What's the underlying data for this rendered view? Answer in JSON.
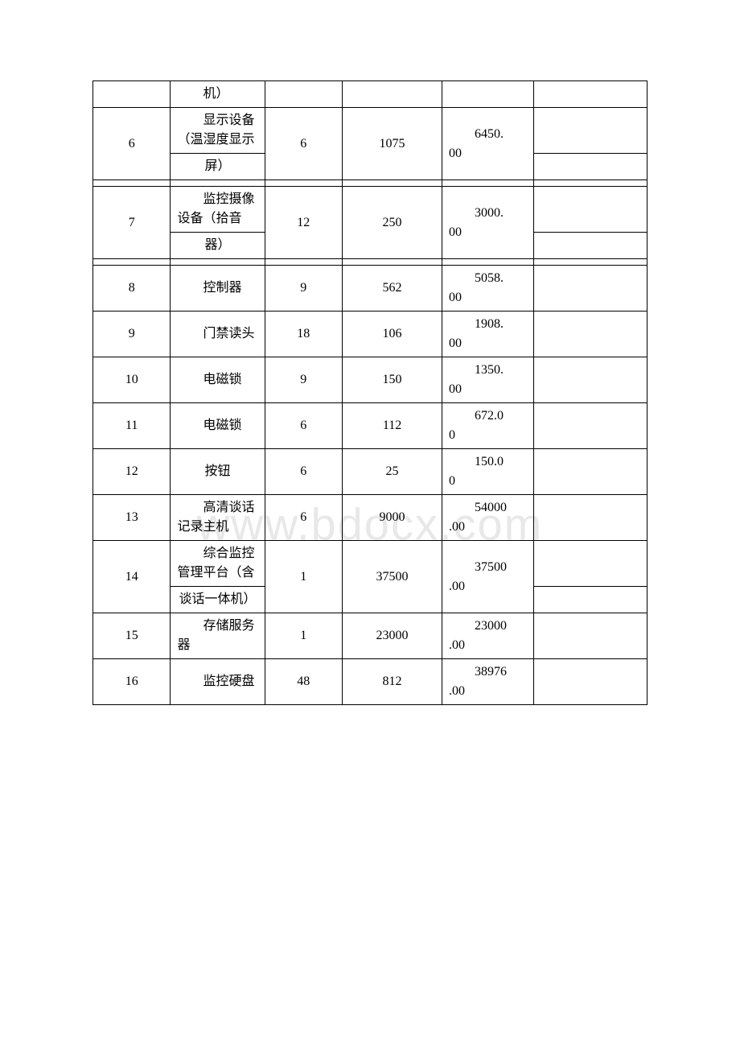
{
  "watermark": "www.bdocx.com",
  "rows": [
    {
      "no": "",
      "name_parts": [
        "机）"
      ],
      "qty": "",
      "price": "",
      "total": "",
      "split": false
    },
    {
      "no": "6",
      "name_parts": [
        "显示设备（温湿度显示",
        "屏）"
      ],
      "qty": "6",
      "price": "1075",
      "total_a": "6450.",
      "total_b": "00",
      "split": true,
      "gap": true
    },
    {
      "no": "7",
      "name_parts": [
        "监控摄像设备（拾音",
        "器）"
      ],
      "qty": "12",
      "price": "250",
      "total_a": "3000.",
      "total_b": "00",
      "split": true,
      "gap": true
    },
    {
      "no": "8",
      "name_parts": [
        "控制器"
      ],
      "qty": "9",
      "price": "562",
      "total_a": "5058.",
      "total_b": "00",
      "split": false
    },
    {
      "no": "9",
      "name_parts": [
        "门禁读头"
      ],
      "qty": "18",
      "price": "106",
      "total_a": "1908.",
      "total_b": "00",
      "split": false
    },
    {
      "no": "10",
      "name_parts": [
        "电磁锁"
      ],
      "qty": "9",
      "price": "150",
      "total_a": "1350.",
      "total_b": "00",
      "split": false
    },
    {
      "no": "11",
      "name_parts": [
        "电磁锁"
      ],
      "qty": "6",
      "price": "112",
      "total_a": "672.0",
      "total_b": "0",
      "split": false
    },
    {
      "no": "12",
      "name_parts": [
        "按钮"
      ],
      "qty": "6",
      "price": "25",
      "total_a": "150.0",
      "total_b": "0",
      "split": false,
      "center_name": true
    },
    {
      "no": "13",
      "name_parts": [
        "高清谈话记录主机"
      ],
      "qty": "6",
      "price": "9000",
      "total_a": "54000",
      "total_b": ".00",
      "split": false
    },
    {
      "no": "14",
      "name_parts": [
        "综合监控管理平台（含",
        "谈话一体机）"
      ],
      "qty": "1",
      "price": "37500",
      "total_a": "37500",
      "total_b": ".00",
      "split": true,
      "gap": false
    },
    {
      "no": "15",
      "name_parts": [
        "存储服务器"
      ],
      "qty": "1",
      "price": "23000",
      "total_a": "23000",
      "total_b": ".00",
      "split": false
    },
    {
      "no": "16",
      "name_parts": [
        "监控硬盘"
      ],
      "qty": "48",
      "price": "812",
      "total_a": "38976",
      "total_b": ".00",
      "split": false
    }
  ],
  "style": {
    "border_color": "#000000",
    "background": "#ffffff",
    "text_color": "#000000",
    "watermark_color": "#e8e8e8",
    "font_family": "SimSun",
    "font_size_pt": 12,
    "col_widths_pct": [
      14,
      17,
      14,
      18,
      16.5,
      20.5
    ]
  }
}
